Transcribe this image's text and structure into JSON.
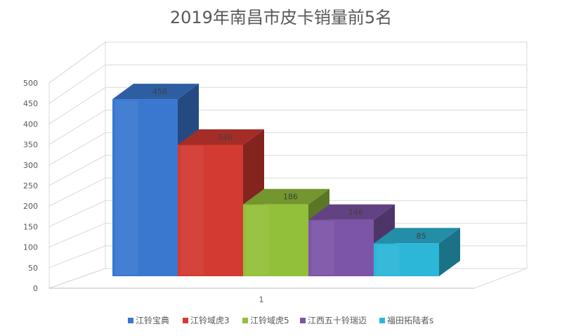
{
  "chart_data": {
    "type": "bar",
    "title": "2019年南昌市皮卡销量前5名",
    "categories": [
      "1"
    ],
    "series": [
      {
        "name": "江铃宝典",
        "values": [
          458
        ],
        "color": "#3a78d0"
      },
      {
        "name": "江铃域虎3",
        "values": [
          340
        ],
        "color": "#d33a32"
      },
      {
        "name": "江铃域虎5",
        "values": [
          186
        ],
        "color": "#93c03b"
      },
      {
        "name": "江西五十铃瑞迈",
        "values": [
          146
        ],
        "color": "#7d55a8"
      },
      {
        "name": "福田拓陆者s",
        "values": [
          85
        ],
        "color": "#2cb6d8"
      }
    ],
    "yticks": [
      0,
      50,
      100,
      150,
      200,
      250,
      300,
      350,
      400,
      450,
      500
    ],
    "ylim": [
      0,
      500
    ],
    "xlabel": "",
    "ylabel": "",
    "grid": true,
    "legend": "bottom",
    "style": "3d-bar"
  }
}
